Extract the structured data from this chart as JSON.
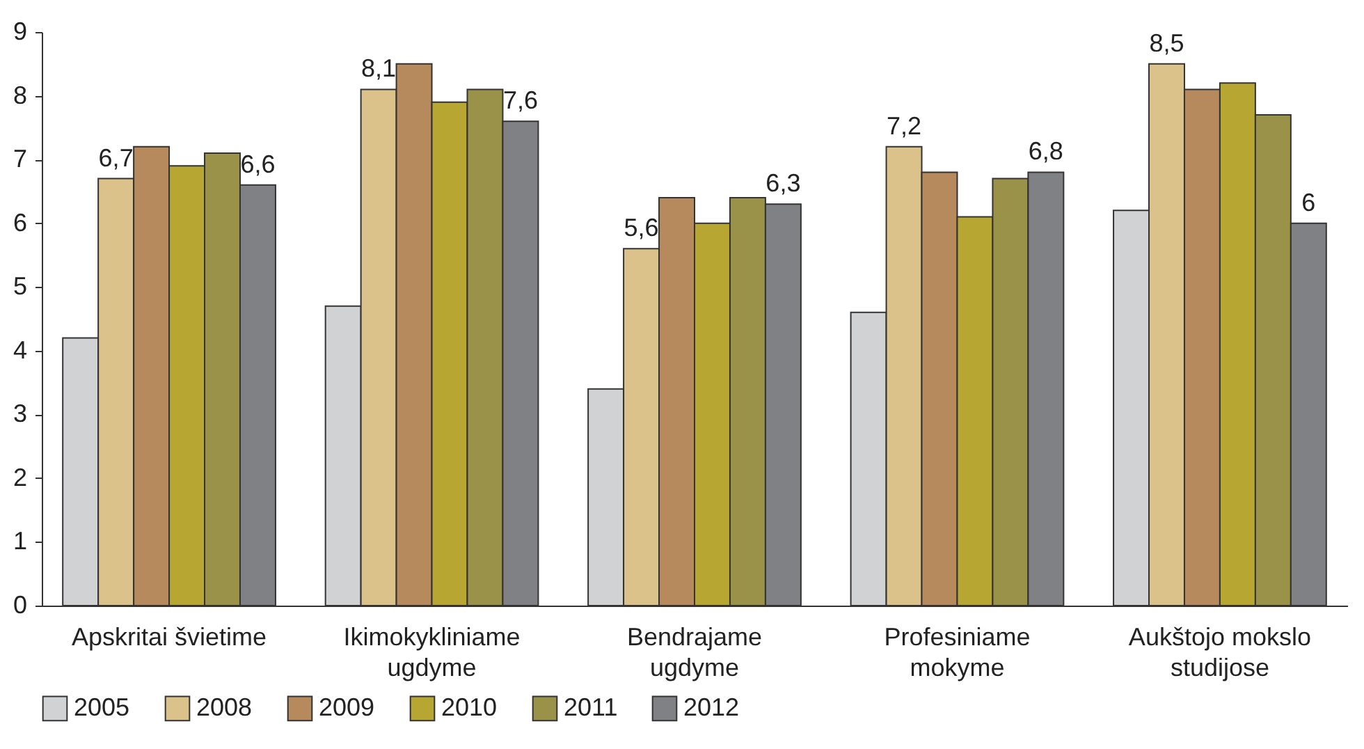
{
  "chart_data": {
    "type": "bar",
    "categories": [
      "Apskritai švietime",
      "Ikimokykliniame\nugdyme",
      "Bendrajame\nugdyme",
      "Profesiniame\nmokyme",
      "Aukštojo mokslo\nstudijose"
    ],
    "series": [
      {
        "name": "2005",
        "color": "#d1d2d4",
        "values": [
          4.2,
          4.7,
          3.4,
          4.6,
          6.2
        ]
      },
      {
        "name": "2008",
        "color": "#dbc28b",
        "values": [
          6.7,
          8.1,
          5.6,
          7.2,
          8.5
        ],
        "value_labels": [
          "6,7",
          "8,1",
          "5,6",
          "7,2",
          "8,5"
        ]
      },
      {
        "name": "2009",
        "color": "#b68a5c",
        "values": [
          7.2,
          8.5,
          6.4,
          6.8,
          8.1
        ]
      },
      {
        "name": "2010",
        "color": "#b7a632",
        "values": [
          6.9,
          7.9,
          6.0,
          6.1,
          8.2
        ]
      },
      {
        "name": "2011",
        "color": "#9a9249",
        "values": [
          7.1,
          8.1,
          6.4,
          6.7,
          7.7
        ]
      },
      {
        "name": "2012",
        "color": "#808184",
        "values": [
          6.6,
          7.6,
          6.3,
          6.8,
          6.0
        ],
        "value_labels": [
          "6,6",
          "7,6",
          "6,3",
          "6,8",
          "6"
        ]
      }
    ],
    "ylim": [
      0,
      9
    ],
    "yticks": [
      0,
      1,
      2,
      3,
      4,
      5,
      6,
      7,
      8,
      9
    ],
    "grid": false,
    "legend": "bottom"
  }
}
